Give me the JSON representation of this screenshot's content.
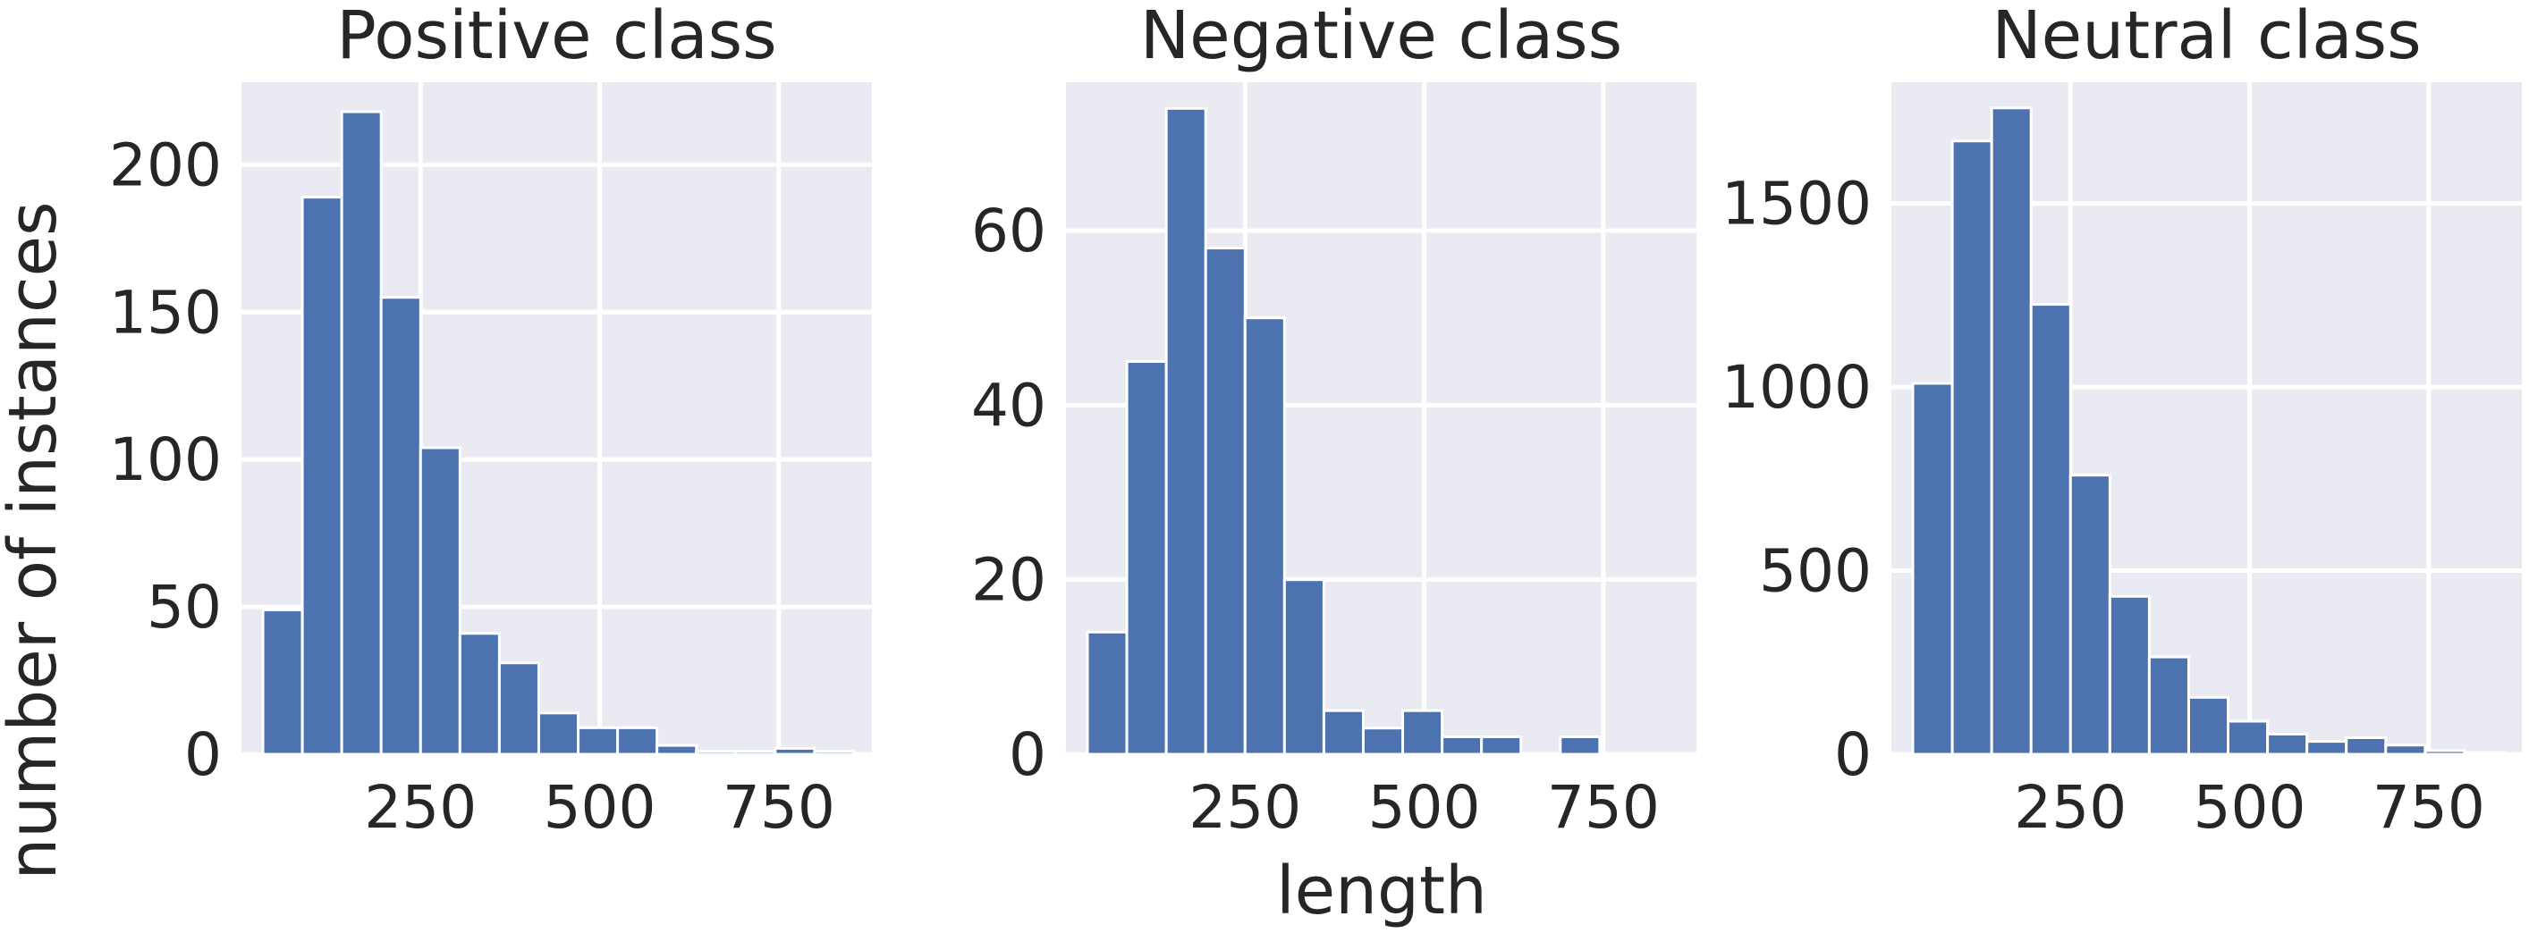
{
  "figure": {
    "ylabel": "number of instances",
    "xlabel": "length"
  },
  "colors": {
    "background": "#EAEAF2",
    "bar": "#4C72B0",
    "grid": "#FFFFFF",
    "text": "#262626"
  },
  "chart_data": [
    {
      "type": "bar",
      "title": "Positive class",
      "xlabel": "",
      "ylabel": "number of instances",
      "grid": true,
      "bin_edges": [
        30,
        85,
        140,
        195,
        250,
        305,
        360,
        415,
        470,
        525,
        580,
        635,
        690,
        745,
        800,
        855
      ],
      "values": [
        49,
        189,
        218,
        155,
        104,
        41,
        31,
        14,
        9,
        9,
        3,
        1,
        1,
        2,
        1
      ],
      "xlim": [
        0,
        880
      ],
      "ylim": [
        0,
        228
      ],
      "xticks": [
        250,
        500,
        750
      ],
      "yticks": [
        0,
        50,
        100,
        150,
        200
      ]
    },
    {
      "type": "bar",
      "title": "Negative class",
      "xlabel": "length",
      "ylabel": "",
      "grid": true,
      "bin_edges": [
        30,
        85,
        140,
        195,
        250,
        305,
        360,
        415,
        470,
        525,
        580,
        635,
        690,
        745,
        800,
        855
      ],
      "values": [
        14,
        45,
        74,
        58,
        50,
        20,
        5,
        3,
        5,
        2,
        2,
        0,
        2,
        0,
        0
      ],
      "xlim": [
        0,
        880
      ],
      "ylim": [
        0,
        77
      ],
      "xticks": [
        250,
        500,
        750
      ],
      "yticks": [
        0,
        20,
        40,
        60
      ]
    },
    {
      "type": "bar",
      "title": "Neutral class",
      "xlabel": "",
      "ylabel": "",
      "grid": true,
      "bin_edges": [
        30,
        85,
        140,
        195,
        250,
        305,
        360,
        415,
        470,
        525,
        580,
        635,
        690,
        745,
        800,
        855
      ],
      "values": [
        1010,
        1670,
        1760,
        1225,
        760,
        430,
        265,
        155,
        90,
        55,
        35,
        45,
        25,
        10,
        5
      ],
      "xlim": [
        0,
        880
      ],
      "ylim": [
        0,
        1830
      ],
      "xticks": [
        250,
        500,
        750
      ],
      "yticks": [
        0,
        500,
        1000,
        1500
      ]
    }
  ]
}
